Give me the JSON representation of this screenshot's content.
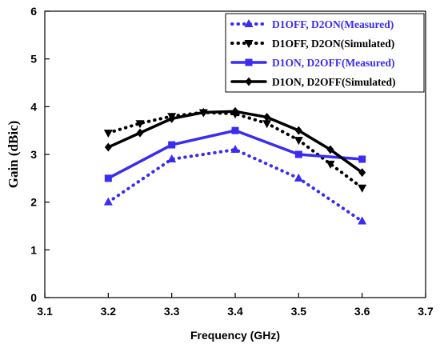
{
  "chart_data": {
    "type": "line",
    "xlabel": "Frequency (GHz)",
    "ylabel": "Gain (dBic)",
    "xlim": [
      3.1,
      3.7
    ],
    "ylim": [
      0,
      6
    ],
    "x_ticks": [
      "3.1",
      "3.2",
      "3.3",
      "3.4",
      "3.5",
      "3.6",
      "3.7"
    ],
    "y_ticks": [
      "0",
      "1",
      "2",
      "3",
      "4",
      "5",
      "6"
    ],
    "grid": false,
    "legend_position": "top-right",
    "series": [
      {
        "name": "D1OFF, D2ON(Measured)",
        "color": "#3a2cf0",
        "line_style": "dotted",
        "marker": "triangle-up",
        "text_color": "#3a2cf0",
        "x": [
          3.2,
          3.3,
          3.4,
          3.5,
          3.6
        ],
        "values": [
          2.0,
          2.9,
          3.1,
          2.5,
          1.6
        ]
      },
      {
        "name": "D1OFF, D2ON(Simulated)",
        "color": "#000000",
        "line_style": "dotted",
        "marker": "triangle-down",
        "text_color": "#000000",
        "x": [
          3.2,
          3.25,
          3.3,
          3.35,
          3.4,
          3.45,
          3.5,
          3.55,
          3.6
        ],
        "values": [
          3.45,
          3.65,
          3.8,
          3.88,
          3.85,
          3.65,
          3.3,
          2.8,
          2.3
        ]
      },
      {
        "name": "D1ON, D2OFF(Measured)",
        "color": "#3a2cf0",
        "line_style": "solid",
        "marker": "square",
        "text_color": "#3a2cf0",
        "x": [
          3.2,
          3.3,
          3.4,
          3.5,
          3.6
        ],
        "values": [
          2.5,
          3.2,
          3.5,
          3.0,
          2.9
        ]
      },
      {
        "name": "D1ON, D2OFF(Simulated)",
        "color": "#000000",
        "line_style": "solid",
        "marker": "diamond",
        "text_color": "#000000",
        "x": [
          3.2,
          3.25,
          3.3,
          3.35,
          3.4,
          3.45,
          3.5,
          3.55,
          3.6
        ],
        "values": [
          3.15,
          3.45,
          3.75,
          3.88,
          3.9,
          3.78,
          3.5,
          3.1,
          2.62
        ]
      }
    ]
  }
}
